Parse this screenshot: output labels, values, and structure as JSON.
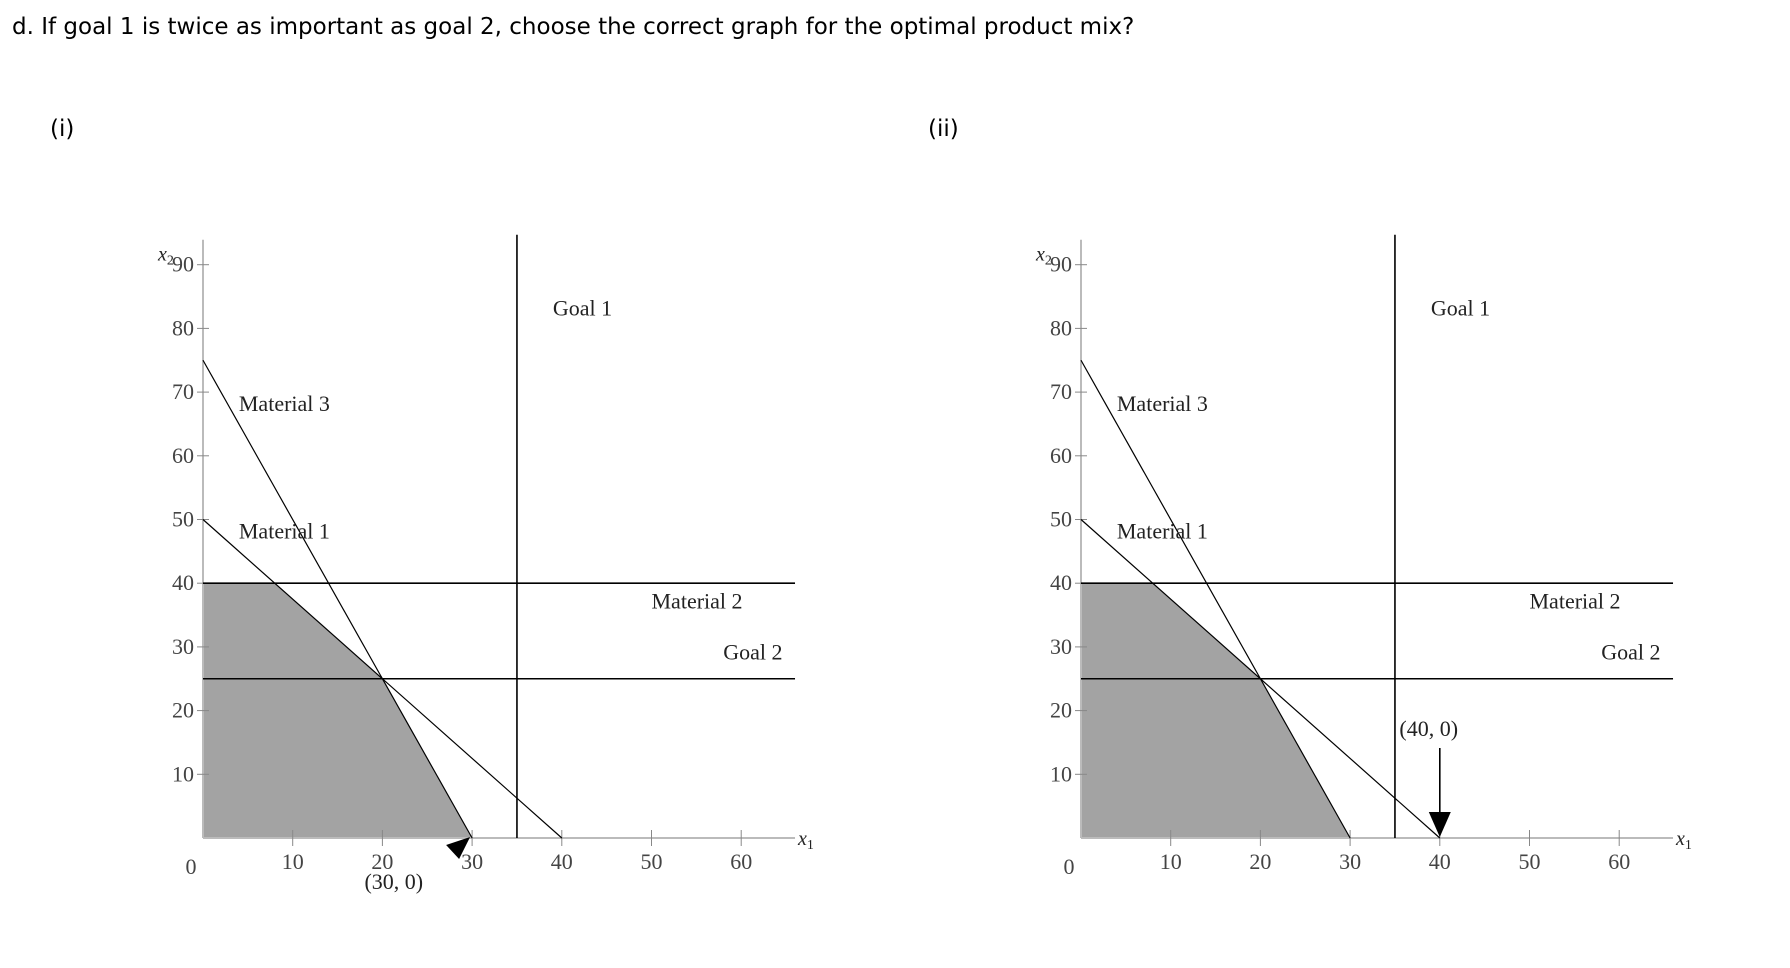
{
  "question": "d. If goal 1 is twice as important as goal 2, choose the correct graph for the optimal product mix?",
  "panels": [
    {
      "label": "(i)"
    },
    {
      "label": "(ii)"
    }
  ],
  "colors": {
    "feasible_fill": "#a3a3a3",
    "line": "#000000",
    "axis": "#bbbbbb",
    "tick_text": "#444444"
  },
  "chart_data": [
    {
      "type": "line",
      "xlabel": "x1",
      "ylabel": "x2",
      "xlim": [
        0,
        66
      ],
      "ylim": [
        0,
        90
      ],
      "x_ticks": [
        0,
        10,
        20,
        30,
        40,
        50,
        60
      ],
      "y_ticks": [
        10,
        20,
        30,
        40,
        50,
        60,
        70,
        80,
        90
      ],
      "series": [
        {
          "name": "Material 3",
          "points": [
            [
              0,
              75
            ],
            [
              30,
              0
            ]
          ]
        },
        {
          "name": "Material 1",
          "points": [
            [
              0,
              50
            ],
            [
              40,
              0
            ]
          ]
        },
        {
          "name": "Material 2",
          "points": [
            [
              0,
              40
            ],
            [
              66,
              40
            ]
          ]
        },
        {
          "name": "Goal 2",
          "points": [
            [
              0,
              25
            ],
            [
              66,
              25
            ]
          ]
        },
        {
          "name": "Goal 1",
          "points": [
            [
              35,
              0
            ],
            [
              35,
              95
            ]
          ]
        }
      ],
      "feasible_region": [
        [
          0,
          0
        ],
        [
          0,
          40
        ],
        [
          8,
          40
        ],
        [
          20,
          25
        ],
        [
          30,
          0
        ]
      ],
      "annotations": [
        {
          "text": "Goal 1",
          "x": 39,
          "y": 82
        },
        {
          "text": "Material 3",
          "x": 4,
          "y": 67
        },
        {
          "text": "Material 1",
          "x": 4,
          "y": 47
        },
        {
          "text": "Material 2",
          "x": 50,
          "y": 36
        },
        {
          "text": "Goal 2",
          "x": 58,
          "y": 28
        },
        {
          "text": "(30, 0)",
          "x": 18,
          "y": -8
        }
      ],
      "marker": {
        "type": "arrow",
        "point": [
          30,
          0
        ]
      }
    },
    {
      "type": "line",
      "xlabel": "x1",
      "ylabel": "x2",
      "xlim": [
        0,
        66
      ],
      "ylim": [
        0,
        90
      ],
      "x_ticks": [
        0,
        10,
        20,
        30,
        40,
        50,
        60
      ],
      "y_ticks": [
        10,
        20,
        30,
        40,
        50,
        60,
        70,
        80,
        90
      ],
      "series": [
        {
          "name": "Material 3",
          "points": [
            [
              0,
              75
            ],
            [
              30,
              0
            ]
          ]
        },
        {
          "name": "Material 1",
          "points": [
            [
              0,
              50
            ],
            [
              40,
              0
            ]
          ]
        },
        {
          "name": "Material 2",
          "points": [
            [
              0,
              40
            ],
            [
              66,
              40
            ]
          ]
        },
        {
          "name": "Goal 2",
          "points": [
            [
              0,
              25
            ],
            [
              66,
              25
            ]
          ]
        },
        {
          "name": "Goal 1",
          "points": [
            [
              35,
              0
            ],
            [
              35,
              95
            ]
          ]
        }
      ],
      "feasible_region": [
        [
          0,
          0
        ],
        [
          0,
          40
        ],
        [
          8,
          40
        ],
        [
          20,
          25
        ],
        [
          30,
          0
        ]
      ],
      "annotations": [
        {
          "text": "Goal 1",
          "x": 39,
          "y": 82
        },
        {
          "text": "Material 3",
          "x": 4,
          "y": 67
        },
        {
          "text": "Material 1",
          "x": 4,
          "y": 47
        },
        {
          "text": "Material 2",
          "x": 50,
          "y": 36
        },
        {
          "text": "Goal 2",
          "x": 58,
          "y": 28
        },
        {
          "text": "(40, 0)",
          "x": 35.5,
          "y": 16
        }
      ],
      "marker": {
        "type": "arrow",
        "point": [
          40,
          0
        ]
      }
    }
  ]
}
